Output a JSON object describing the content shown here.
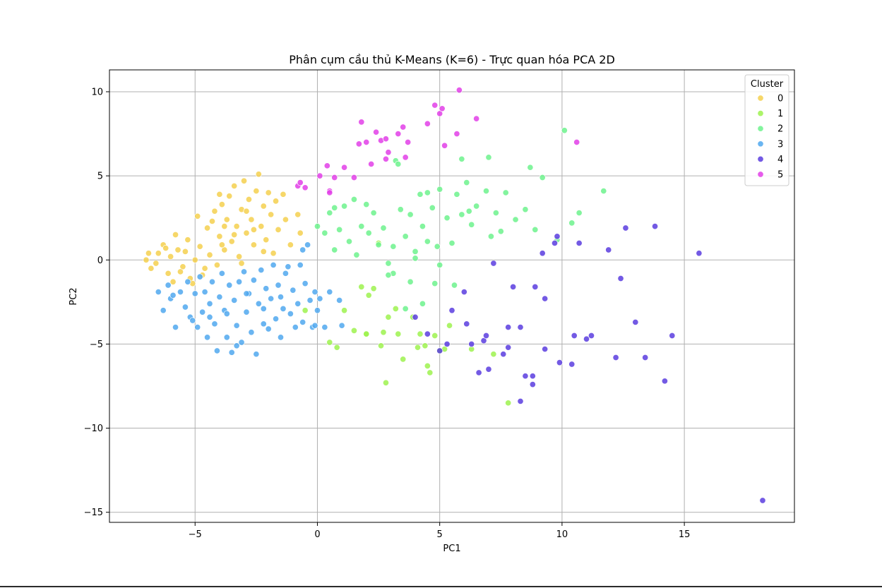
{
  "chart_data": {
    "type": "scatter",
    "title": "Phân cụm cầu thủ K-Means (K=6) - Trực quan hóa PCA 2D",
    "xlabel": "PC1",
    "ylabel": "PC2",
    "xlim": [
      -8.5,
      19.5
    ],
    "ylim": [
      -15.6,
      11.3
    ],
    "x_ticks": [
      -5,
      0,
      5,
      10,
      15
    ],
    "y_ticks": [
      -15,
      -10,
      -5,
      0,
      5,
      10
    ],
    "x_tick_labels": [
      "−5",
      "0",
      "5",
      "10",
      "15"
    ],
    "y_tick_labels": [
      "−15",
      "−10",
      "−5",
      "0",
      "5",
      "10"
    ],
    "grid": true,
    "legend": {
      "title": "Cluster",
      "placement": "top-right"
    },
    "series": [
      {
        "name": "0",
        "color": "#f5d04f",
        "points": [
          [
            -7.0,
            0.0
          ],
          [
            -6.8,
            -0.5
          ],
          [
            -6.5,
            0.4
          ],
          [
            -6.3,
            0.9
          ],
          [
            -6.1,
            -0.8
          ],
          [
            -6.0,
            0.2
          ],
          [
            -5.9,
            -1.3
          ],
          [
            -5.7,
            0.6
          ],
          [
            -5.5,
            -0.4
          ],
          [
            -5.3,
            1.2
          ],
          [
            -5.2,
            -1.1
          ],
          [
            -5.0,
            0.0
          ],
          [
            -4.9,
            2.6
          ],
          [
            -4.8,
            0.8
          ],
          [
            -4.7,
            -0.9
          ],
          [
            -4.5,
            1.9
          ],
          [
            -4.4,
            0.3
          ],
          [
            -4.2,
            2.9
          ],
          [
            -4.1,
            -0.3
          ],
          [
            -4.0,
            1.4
          ],
          [
            -3.9,
            3.3
          ],
          [
            -3.8,
            0.6
          ],
          [
            -3.7,
            2.4
          ],
          [
            -3.6,
            3.8
          ],
          [
            -3.5,
            1.1
          ],
          [
            -3.4,
            4.4
          ],
          [
            -3.3,
            2.0
          ],
          [
            -3.2,
            0.2
          ],
          [
            -3.1,
            3.0
          ],
          [
            -3.0,
            4.7
          ],
          [
            -2.9,
            1.6
          ],
          [
            -2.8,
            3.6
          ],
          [
            -2.7,
            2.4
          ],
          [
            -2.6,
            0.9
          ],
          [
            -2.5,
            4.1
          ],
          [
            -2.4,
            5.1
          ],
          [
            -2.3,
            2.0
          ],
          [
            -2.2,
            3.2
          ],
          [
            -2.1,
            1.2
          ],
          [
            -2.0,
            4.0
          ],
          [
            -1.9,
            2.7
          ],
          [
            -1.8,
            0.4
          ],
          [
            -1.7,
            3.5
          ],
          [
            -1.6,
            1.8
          ],
          [
            -1.4,
            3.9
          ],
          [
            -1.3,
            2.4
          ],
          [
            -1.1,
            0.9
          ],
          [
            -0.8,
            2.7
          ],
          [
            -0.7,
            1.6
          ],
          [
            -6.6,
            -0.2
          ],
          [
            -6.2,
            0.7
          ],
          [
            -5.8,
            1.5
          ],
          [
            -5.6,
            -0.7
          ],
          [
            -5.4,
            0.5
          ],
          [
            -4.6,
            -0.5
          ],
          [
            -4.3,
            2.3
          ],
          [
            -3.9,
            0.9
          ],
          [
            -3.4,
            1.5
          ],
          [
            -2.9,
            2.9
          ],
          [
            -2.6,
            1.8
          ],
          [
            -3.8,
            2.0
          ],
          [
            -3.1,
            -0.2
          ],
          [
            -2.2,
            0.5
          ],
          [
            -6.9,
            0.4
          ],
          [
            -5.1,
            -1.4
          ],
          [
            -4.0,
            3.9
          ]
        ]
      },
      {
        "name": "1",
        "color": "#9ef24f",
        "points": [
          [
            -0.5,
            -3.0
          ],
          [
            0.5,
            -4.9
          ],
          [
            0.8,
            -5.2
          ],
          [
            1.1,
            -3.0
          ],
          [
            1.5,
            -4.2
          ],
          [
            1.8,
            -1.6
          ],
          [
            2.0,
            -4.4
          ],
          [
            2.1,
            -2.1
          ],
          [
            2.3,
            -1.7
          ],
          [
            2.6,
            -5.1
          ],
          [
            2.7,
            -4.3
          ],
          [
            2.8,
            -7.3
          ],
          [
            2.9,
            -3.4
          ],
          [
            3.3,
            -4.4
          ],
          [
            3.5,
            -5.9
          ],
          [
            3.9,
            -3.4
          ],
          [
            4.1,
            -5.2
          ],
          [
            4.4,
            -5.1
          ],
          [
            4.5,
            -6.3
          ],
          [
            4.6,
            -6.7
          ],
          [
            4.8,
            -4.5
          ],
          [
            5.0,
            -5.4
          ],
          [
            5.2,
            -5.3
          ],
          [
            5.4,
            -3.9
          ],
          [
            6.3,
            -5.3
          ],
          [
            7.2,
            -5.6
          ],
          [
            7.8,
            -8.5
          ],
          [
            2.5,
            1.0
          ],
          [
            3.2,
            -2.9
          ],
          [
            4.2,
            -4.4
          ],
          [
            2.0,
            -4.4
          ]
        ]
      },
      {
        "name": "2",
        "color": "#6df28d",
        "points": [
          [
            0.0,
            2.0
          ],
          [
            0.3,
            1.6
          ],
          [
            0.5,
            2.8
          ],
          [
            0.7,
            0.6
          ],
          [
            0.9,
            1.8
          ],
          [
            1.1,
            3.2
          ],
          [
            1.3,
            1.1
          ],
          [
            1.5,
            3.6
          ],
          [
            1.6,
            0.3
          ],
          [
            1.8,
            2.0
          ],
          [
            2.0,
            3.3
          ],
          [
            2.1,
            1.6
          ],
          [
            2.3,
            2.8
          ],
          [
            2.5,
            0.9
          ],
          [
            2.7,
            1.9
          ],
          [
            2.9,
            -0.2
          ],
          [
            3.1,
            0.8
          ],
          [
            3.2,
            5.9
          ],
          [
            3.4,
            3.0
          ],
          [
            3.6,
            1.4
          ],
          [
            3.8,
            2.7
          ],
          [
            4.0,
            0.5
          ],
          [
            4.2,
            3.9
          ],
          [
            4.3,
            2.0
          ],
          [
            4.5,
            1.1
          ],
          [
            4.7,
            3.1
          ],
          [
            4.9,
            0.8
          ],
          [
            5.0,
            4.2
          ],
          [
            5.3,
            2.5
          ],
          [
            5.5,
            1.0
          ],
          [
            5.7,
            3.9
          ],
          [
            5.9,
            2.7
          ],
          [
            6.1,
            4.6
          ],
          [
            6.3,
            2.1
          ],
          [
            6.5,
            3.2
          ],
          [
            6.9,
            4.1
          ],
          [
            7.0,
            6.1
          ],
          [
            7.1,
            1.4
          ],
          [
            7.3,
            2.8
          ],
          [
            7.5,
            1.7
          ],
          [
            7.7,
            4.0
          ],
          [
            8.1,
            2.4
          ],
          [
            8.5,
            3.0
          ],
          [
            8.7,
            5.5
          ],
          [
            8.9,
            1.8
          ],
          [
            9.2,
            4.9
          ],
          [
            9.8,
            1.2
          ],
          [
            10.1,
            7.7
          ],
          [
            10.4,
            2.2
          ],
          [
            10.7,
            2.8
          ],
          [
            11.7,
            4.1
          ],
          [
            3.1,
            -0.8
          ],
          [
            3.8,
            -1.3
          ],
          [
            4.3,
            -2.6
          ],
          [
            4.8,
            -1.4
          ],
          [
            5.0,
            -0.3
          ],
          [
            5.6,
            -1.5
          ],
          [
            3.6,
            -2.9
          ],
          [
            2.9,
            -0.9
          ],
          [
            4.0,
            0.1
          ],
          [
            0.7,
            3.1
          ],
          [
            5.9,
            6.0
          ],
          [
            4.5,
            4.0
          ],
          [
            6.2,
            2.9
          ],
          [
            3.3,
            5.7
          ]
        ]
      },
      {
        "name": "3",
        "color": "#50a8ee",
        "points": [
          [
            -6.5,
            -1.9
          ],
          [
            -6.3,
            -3.0
          ],
          [
            -6.1,
            -1.5
          ],
          [
            -6.0,
            -2.3
          ],
          [
            -5.8,
            -4.0
          ],
          [
            -5.6,
            -1.9
          ],
          [
            -5.4,
            -2.8
          ],
          [
            -5.3,
            -1.3
          ],
          [
            -5.2,
            -3.4
          ],
          [
            -5.0,
            -2.0
          ],
          [
            -4.9,
            -4.0
          ],
          [
            -4.8,
            -1.0
          ],
          [
            -4.7,
            -3.1
          ],
          [
            -4.6,
            -1.9
          ],
          [
            -4.5,
            -4.6
          ],
          [
            -4.4,
            -2.6
          ],
          [
            -4.3,
            -1.3
          ],
          [
            -4.2,
            -3.8
          ],
          [
            -4.1,
            -5.4
          ],
          [
            -4.0,
            -2.2
          ],
          [
            -3.9,
            -0.8
          ],
          [
            -3.8,
            -3.0
          ],
          [
            -3.7,
            -4.6
          ],
          [
            -3.6,
            -1.5
          ],
          [
            -3.5,
            -5.5
          ],
          [
            -3.4,
            -2.4
          ],
          [
            -3.3,
            -3.9
          ],
          [
            -3.2,
            -1.3
          ],
          [
            -3.1,
            -4.9
          ],
          [
            -3.0,
            -0.7
          ],
          [
            -2.9,
            -3.1
          ],
          [
            -2.8,
            -2.0
          ],
          [
            -2.7,
            -4.3
          ],
          [
            -2.6,
            -1.2
          ],
          [
            -2.5,
            -5.6
          ],
          [
            -2.4,
            -2.6
          ],
          [
            -2.3,
            -0.6
          ],
          [
            -2.2,
            -3.8
          ],
          [
            -2.1,
            -1.7
          ],
          [
            -2.0,
            -4.1
          ],
          [
            -1.9,
            -2.3
          ],
          [
            -1.8,
            -0.3
          ],
          [
            -1.7,
            -3.5
          ],
          [
            -1.6,
            -1.5
          ],
          [
            -1.5,
            -4.6
          ],
          [
            -1.4,
            -2.9
          ],
          [
            -1.3,
            -0.8
          ],
          [
            -1.1,
            -3.2
          ],
          [
            -1.0,
            -1.8
          ],
          [
            -0.9,
            -4.0
          ],
          [
            -0.8,
            -2.6
          ],
          [
            -0.7,
            -0.3
          ],
          [
            -0.6,
            -3.7
          ],
          [
            -0.5,
            -1.4
          ],
          [
            -0.4,
            0.9
          ],
          [
            -0.3,
            -2.4
          ],
          [
            -0.2,
            -4.0
          ],
          [
            -0.1,
            -1.9
          ],
          [
            0.0,
            -3.0
          ],
          [
            0.5,
            -1.9
          ],
          [
            0.9,
            -2.4
          ],
          [
            -5.9,
            -2.1
          ],
          [
            -5.1,
            -3.6
          ],
          [
            -4.4,
            -3.4
          ],
          [
            -3.7,
            -3.2
          ],
          [
            -3.3,
            -5.1
          ],
          [
            -2.9,
            -2.0
          ],
          [
            -2.2,
            -2.9
          ],
          [
            -1.5,
            -2.2
          ],
          [
            -1.2,
            -0.4
          ],
          [
            -0.6,
            0.6
          ],
          [
            0.1,
            -2.3
          ],
          [
            -0.1,
            -3.9
          ],
          [
            0.3,
            -4.0
          ],
          [
            1.0,
            -3.9
          ]
        ]
      },
      {
        "name": "4",
        "color": "#5b3ddf",
        "points": [
          [
            4.5,
            -4.4
          ],
          [
            5.0,
            -5.4
          ],
          [
            5.5,
            -3.0
          ],
          [
            6.0,
            -1.9
          ],
          [
            6.1,
            -3.8
          ],
          [
            6.3,
            -5.0
          ],
          [
            6.6,
            -6.7
          ],
          [
            6.8,
            -4.8
          ],
          [
            7.0,
            -6.5
          ],
          [
            7.2,
            -0.2
          ],
          [
            7.6,
            -5.6
          ],
          [
            7.8,
            -5.2
          ],
          [
            8.0,
            -1.6
          ],
          [
            8.3,
            -4.0
          ],
          [
            8.3,
            -8.4
          ],
          [
            8.5,
            -6.9
          ],
          [
            8.8,
            -6.9
          ],
          [
            8.9,
            -1.6
          ],
          [
            9.3,
            -2.3
          ],
          [
            9.3,
            -5.3
          ],
          [
            9.9,
            -6.1
          ],
          [
            10.4,
            -6.2
          ],
          [
            10.5,
            -4.5
          ],
          [
            11.0,
            -4.7
          ],
          [
            11.2,
            -4.5
          ],
          [
            12.2,
            -5.8
          ],
          [
            12.4,
            -1.1
          ],
          [
            13.0,
            -3.7
          ],
          [
            13.4,
            -5.8
          ],
          [
            14.2,
            -7.2
          ],
          [
            14.5,
            -4.5
          ],
          [
            15.6,
            0.4
          ],
          [
            18.2,
            -14.3
          ],
          [
            9.2,
            0.4
          ],
          [
            9.8,
            1.4
          ],
          [
            10.7,
            1.0
          ],
          [
            11.9,
            0.6
          ],
          [
            12.6,
            1.9
          ],
          [
            13.8,
            2.0
          ],
          [
            4.0,
            -3.4
          ],
          [
            5.3,
            -5.0
          ],
          [
            6.9,
            -4.5
          ],
          [
            8.8,
            -7.4
          ],
          [
            7.8,
            -4.0
          ],
          [
            9.7,
            1.0
          ]
        ]
      },
      {
        "name": "5",
        "color": "#e23fe8",
        "points": [
          [
            -0.8,
            4.4
          ],
          [
            -0.5,
            4.3
          ],
          [
            0.1,
            5.0
          ],
          [
            0.4,
            5.6
          ],
          [
            0.5,
            4.1
          ],
          [
            0.7,
            4.9
          ],
          [
            1.1,
            5.5
          ],
          [
            1.5,
            4.9
          ],
          [
            1.7,
            6.9
          ],
          [
            1.8,
            8.2
          ],
          [
            2.0,
            7.0
          ],
          [
            2.2,
            5.7
          ],
          [
            2.4,
            7.6
          ],
          [
            2.6,
            7.1
          ],
          [
            2.8,
            6.0
          ],
          [
            2.9,
            6.4
          ],
          [
            3.3,
            7.5
          ],
          [
            3.6,
            6.1
          ],
          [
            3.7,
            7.0
          ],
          [
            4.5,
            8.1
          ],
          [
            4.8,
            9.2
          ],
          [
            5.0,
            8.7
          ],
          [
            5.1,
            9.0
          ],
          [
            5.2,
            6.8
          ],
          [
            5.7,
            7.5
          ],
          [
            5.8,
            10.1
          ],
          [
            6.5,
            8.4
          ],
          [
            10.6,
            7.0
          ],
          [
            3.5,
            7.9
          ],
          [
            2.8,
            7.2
          ],
          [
            0.5,
            4.0
          ],
          [
            -0.7,
            4.6
          ]
        ]
      }
    ]
  }
}
